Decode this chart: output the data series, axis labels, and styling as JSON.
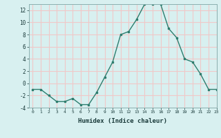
{
  "x": [
    0,
    1,
    2,
    3,
    4,
    5,
    6,
    7,
    8,
    9,
    10,
    11,
    12,
    13,
    14,
    15,
    16,
    17,
    18,
    19,
    20,
    21,
    22,
    23
  ],
  "y": [
    -1,
    -1,
    -2,
    -3,
    -3,
    -2.5,
    -3.5,
    -3.5,
    -1.5,
    1,
    3.5,
    8,
    8.5,
    10.5,
    13,
    13,
    13,
    9,
    7.5,
    4,
    3.5,
    1.5,
    -1,
    -1
  ],
  "xlabel": "Humidex (Indice chaleur)",
  "line_color": "#2d7d6e",
  "bg_color": "#d8f0f0",
  "grid_color": "#f0c8c8",
  "ylim": [
    -4,
    13
  ],
  "xlim": [
    -0.5,
    23
  ],
  "yticks": [
    -4,
    -2,
    0,
    2,
    4,
    6,
    8,
    10,
    12
  ],
  "xticks": [
    0,
    1,
    2,
    3,
    4,
    5,
    6,
    7,
    8,
    9,
    10,
    11,
    12,
    13,
    14,
    15,
    16,
    17,
    18,
    19,
    20,
    21,
    22,
    23
  ]
}
